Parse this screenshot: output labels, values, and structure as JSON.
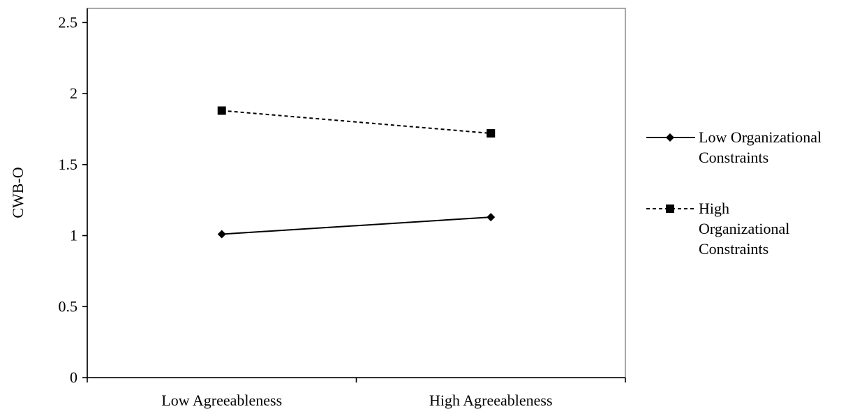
{
  "chart_data": {
    "type": "line",
    "categories": [
      "Low Agreeableness",
      "High Agreeableness"
    ],
    "series": [
      {
        "name": "Low Organizational Constraints",
        "legend_lines": [
          "Low Organizational",
          "Constraints"
        ],
        "values": [
          1.01,
          1.13
        ],
        "line_style": "solid",
        "marker": "diamond",
        "color": "#000000"
      },
      {
        "name": "High Organizational Constraints",
        "legend_lines": [
          "High",
          "Organizational",
          "Constraints"
        ],
        "values": [
          1.88,
          1.72
        ],
        "line_style": "dashed",
        "marker": "square",
        "color": "#000000"
      }
    ],
    "title": "",
    "xlabel": "",
    "ylabel": "CWB-O",
    "ylim": [
      0,
      2.5
    ],
    "yticks": [
      "0",
      "0.5",
      "1",
      "1.5",
      "2",
      "2.5"
    ],
    "grid": false,
    "legend_position": "right"
  }
}
